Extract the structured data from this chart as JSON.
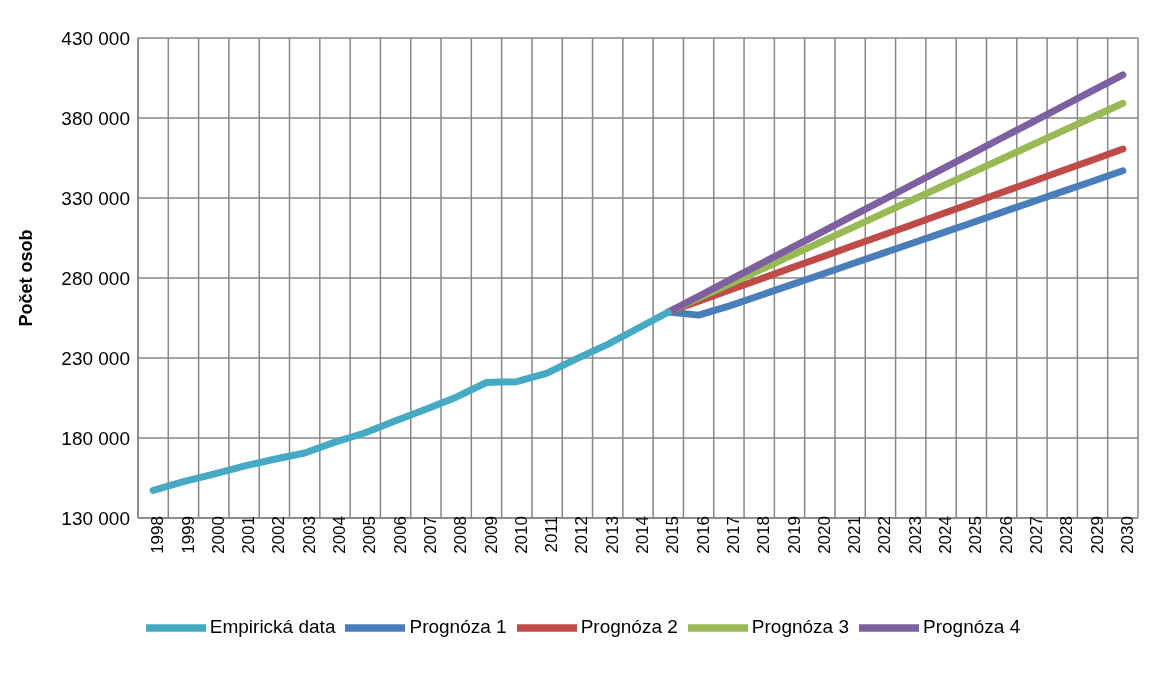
{
  "chart_data": {
    "type": "line",
    "ylabel": "Počet osob",
    "categories": [
      "1998",
      "1999",
      "2000",
      "2001",
      "2002",
      "2003",
      "2004",
      "2005",
      "2006",
      "2007",
      "2008",
      "2009",
      "2010",
      "2011",
      "2012",
      "2013",
      "2014",
      "2015",
      "2016",
      "2017",
      "2018",
      "2019",
      "2020",
      "2021",
      "2022",
      "2023",
      "2024",
      "2025",
      "2026",
      "2027",
      "2028",
      "2029",
      "2030"
    ],
    "series": [
      {
        "name": "Prognóza 1",
        "color": "#4a7ebb",
        "values": [
          null,
          null,
          null,
          null,
          null,
          null,
          null,
          null,
          null,
          null,
          null,
          null,
          null,
          null,
          null,
          null,
          null,
          258700,
          256800,
          262400,
          268900,
          275400,
          281900,
          288400,
          294900,
          301400,
          307900,
          314400,
          321000,
          327500,
          334000,
          340500,
          347000
        ]
      },
      {
        "name": "Prognóza 2",
        "color": "#be4b48",
        "values": [
          null,
          null,
          null,
          null,
          null,
          null,
          null,
          null,
          null,
          null,
          null,
          null,
          null,
          null,
          null,
          null,
          null,
          258700,
          265500,
          272300,
          279100,
          285900,
          292700,
          299500,
          306300,
          313000,
          319800,
          326600,
          333400,
          340200,
          347000,
          353800,
          360600
        ]
      },
      {
        "name": "Prognóza 3",
        "color": "#98b954",
        "values": [
          null,
          null,
          null,
          null,
          null,
          null,
          null,
          null,
          null,
          null,
          null,
          null,
          null,
          null,
          null,
          null,
          null,
          258700,
          267400,
          276100,
          284800,
          293500,
          302200,
          310900,
          319600,
          328300,
          337000,
          345700,
          354400,
          363100,
          371800,
          380500,
          389200
        ]
      },
      {
        "name": "Prognóza 4",
        "color": "#7d60a0",
        "values": [
          null,
          null,
          null,
          null,
          null,
          null,
          null,
          null,
          null,
          null,
          null,
          null,
          null,
          null,
          null,
          null,
          null,
          258700,
          268600,
          278500,
          288400,
          298200,
          308100,
          318000,
          327900,
          337800,
          347700,
          357600,
          367500,
          377300,
          387200,
          397100,
          407000
        ]
      },
      {
        "name": "Empirická data",
        "color": "#46aac5",
        "values": [
          147300,
          152700,
          157400,
          162400,
          166700,
          170600,
          177400,
          183300,
          190800,
          198000,
          205500,
          214700,
          215200,
          220600,
          229800,
          238500,
          248600,
          258700,
          null,
          null,
          null,
          null,
          null,
          null,
          null,
          null,
          null,
          null,
          null,
          null,
          null,
          null,
          null
        ]
      }
    ],
    "ylim": [
      130000,
      430000
    ],
    "yticks": [
      {
        "value": 130000,
        "label": "130 000"
      },
      {
        "value": 180000,
        "label": "180 000"
      },
      {
        "value": 230000,
        "label": "230 000"
      },
      {
        "value": 280000,
        "label": "280 000"
      },
      {
        "value": 330000,
        "label": "330 000"
      },
      {
        "value": 380000,
        "label": "380 000"
      },
      {
        "value": 430000,
        "label": "430 000"
      }
    ],
    "grid": true,
    "legend": "bottom",
    "marker": "none",
    "line_style": "solid"
  }
}
